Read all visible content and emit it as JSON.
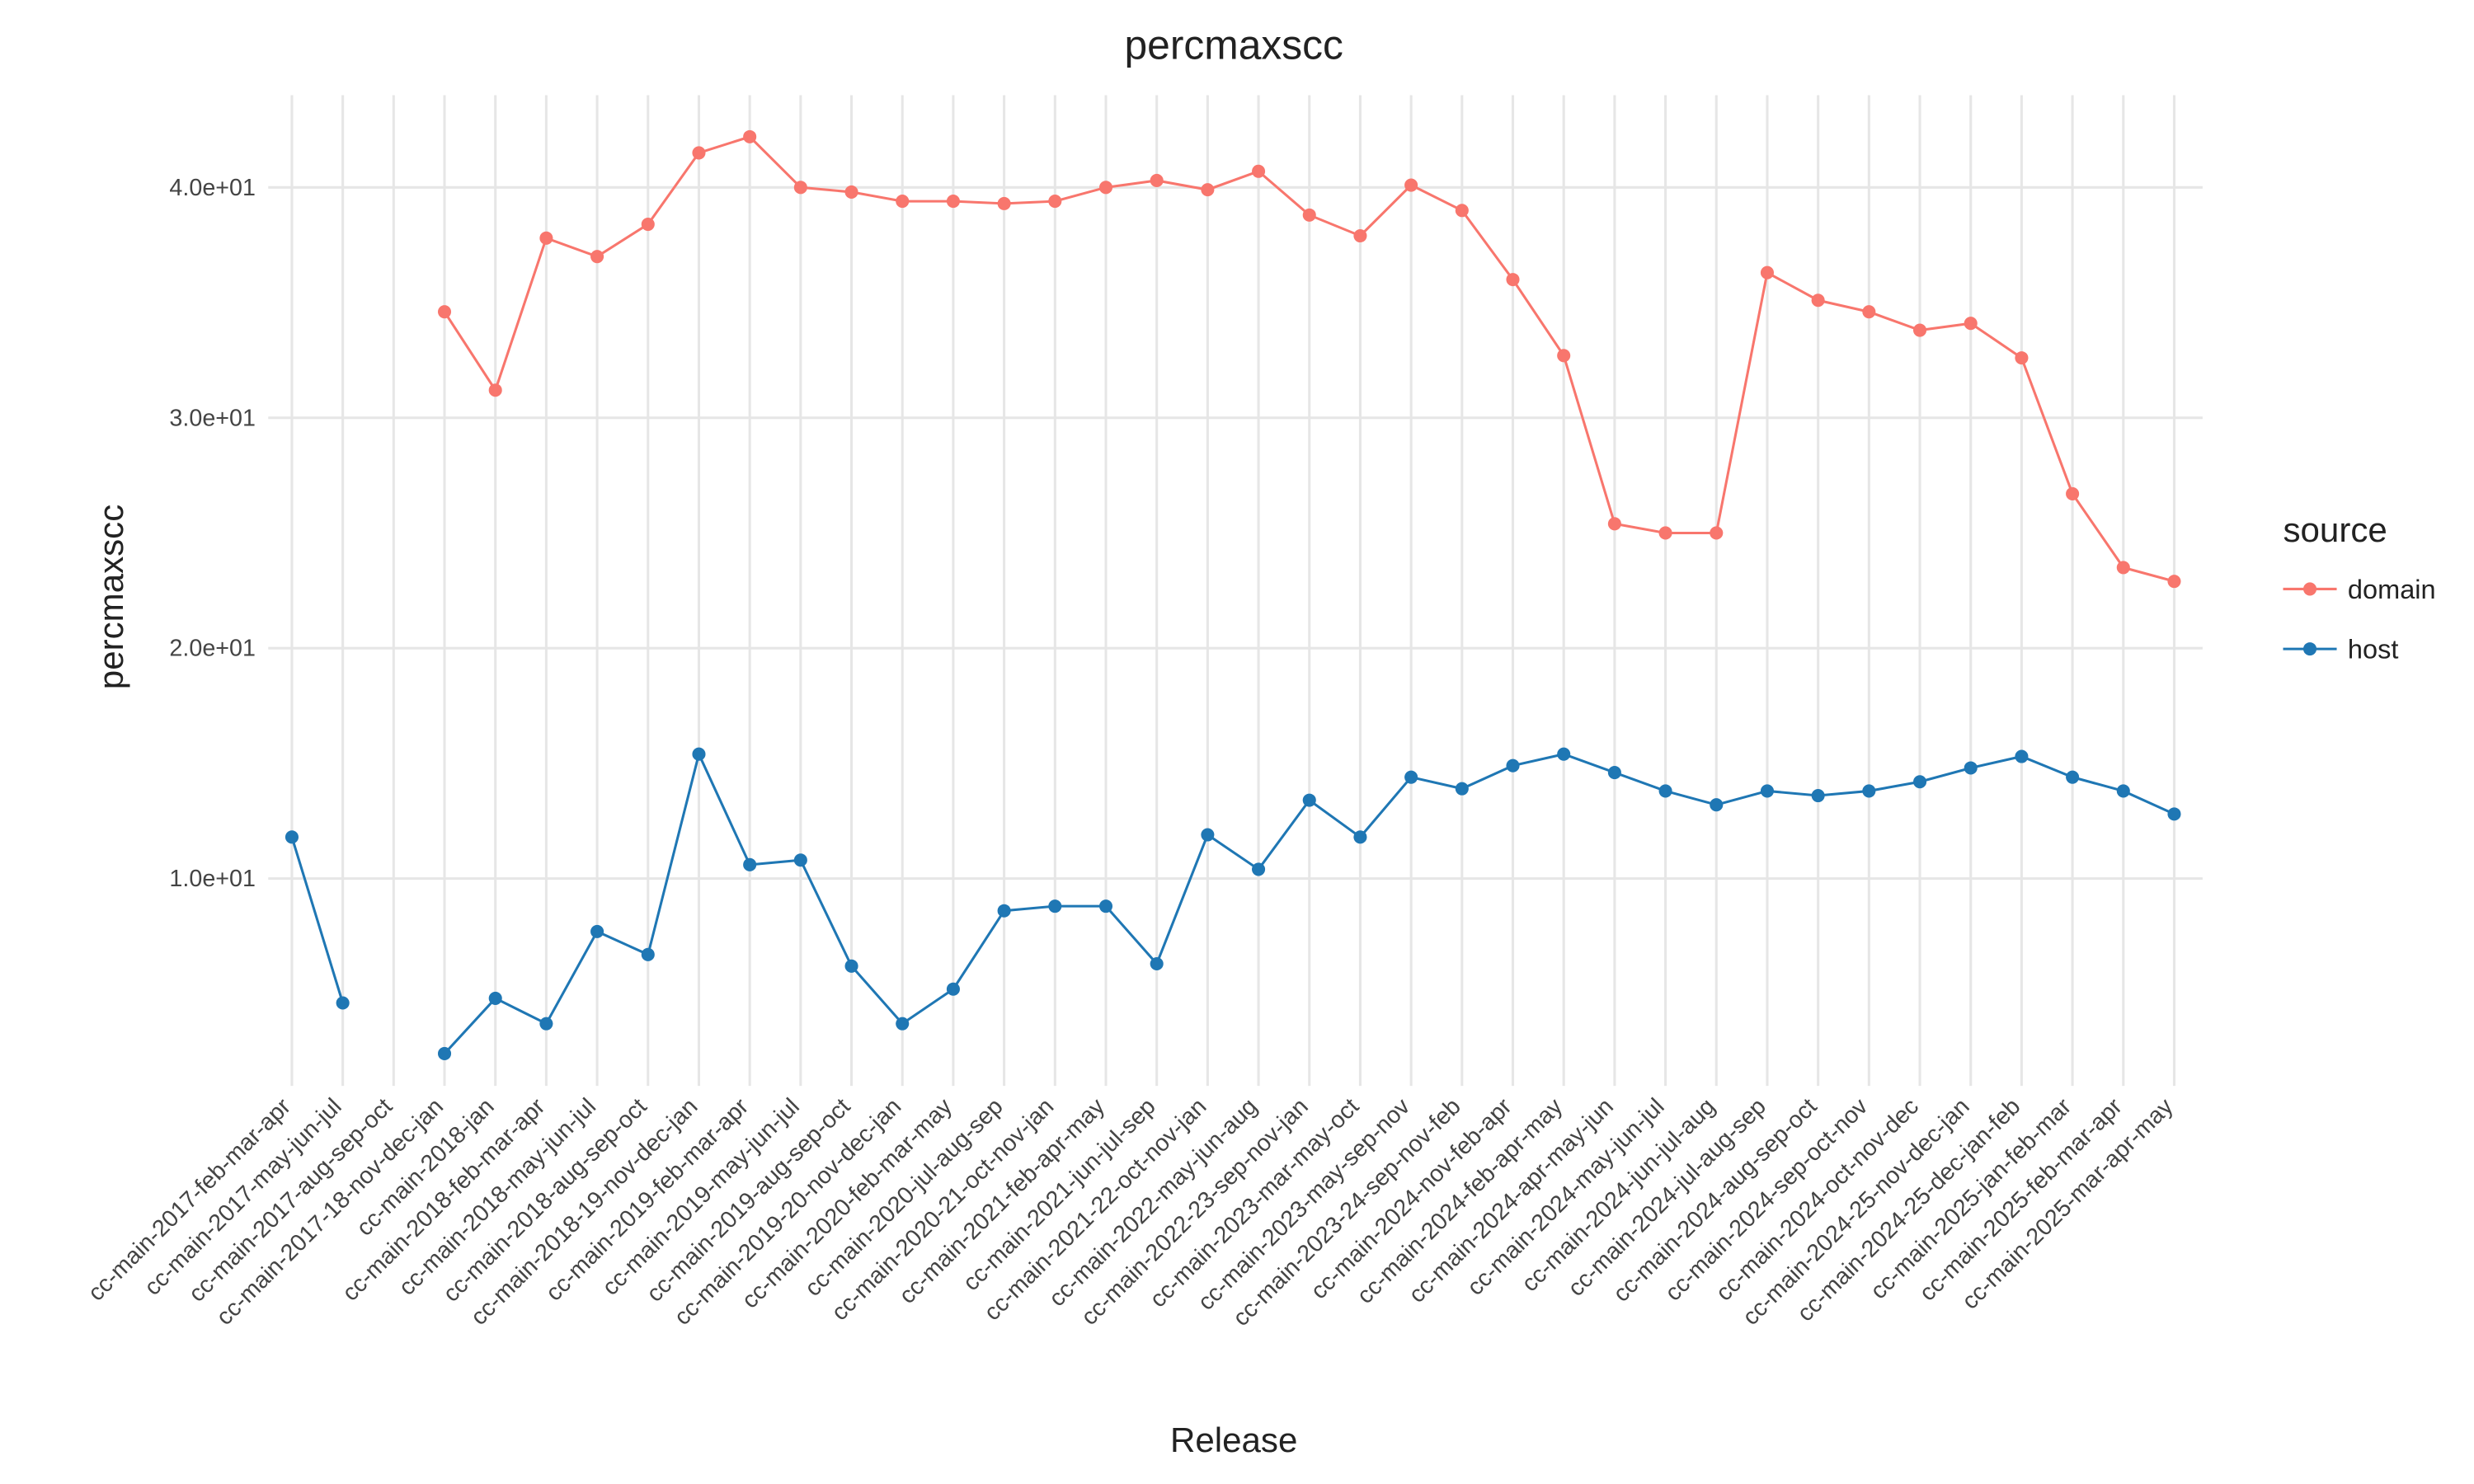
{
  "chart_data": {
    "type": "line",
    "title": "percmaxscc",
    "x_label": "Release",
    "y_label": "percmaxscc",
    "legend_title": "source",
    "legend_position": "right",
    "grid": true,
    "categories": [
      "cc-main-2017-feb-mar-apr",
      "cc-main-2017-may-jun-jul",
      "cc-main-2017-aug-sep-oct",
      "cc-main-2017-18-nov-dec-jan",
      "cc-main-2018-jan",
      "cc-main-2018-feb-mar-apr",
      "cc-main-2018-may-jun-jul",
      "cc-main-2018-aug-sep-oct",
      "cc-main-2018-19-nov-dec-jan",
      "cc-main-2019-feb-mar-apr",
      "cc-main-2019-may-jun-jul",
      "cc-main-2019-aug-sep-oct",
      "cc-main-2019-20-nov-dec-jan",
      "cc-main-2020-feb-mar-may",
      "cc-main-2020-jul-aug-sep",
      "cc-main-2020-21-oct-nov-jan",
      "cc-main-2021-feb-apr-may",
      "cc-main-2021-jun-jul-sep",
      "cc-main-2021-22-oct-nov-jan",
      "cc-main-2022-may-jun-aug",
      "cc-main-2022-23-sep-nov-jan",
      "cc-main-2023-mar-may-oct",
      "cc-main-2023-may-sep-nov",
      "cc-main-2023-24-sep-nov-feb",
      "cc-main-2024-nov-feb-apr",
      "cc-main-2024-feb-apr-may",
      "cc-main-2024-apr-may-jun",
      "cc-main-2024-may-jun-jul",
      "cc-main-2024-jun-jul-aug",
      "cc-main-2024-jul-aug-sep",
      "cc-main-2024-aug-sep-oct",
      "cc-main-2024-sep-oct-nov",
      "cc-main-2024-oct-nov-dec",
      "cc-main-2024-25-nov-dec-jan",
      "cc-main-2024-25-dec-jan-feb",
      "cc-main-2025-jan-feb-mar",
      "cc-main-2025-feb-mar-apr",
      "cc-main-2025-mar-apr-may"
    ],
    "series": [
      {
        "name": "domain",
        "color": "#f8766d",
        "values": [
          null,
          null,
          null,
          34.6,
          31.2,
          37.8,
          37.0,
          38.4,
          41.5,
          42.2,
          40.0,
          39.8,
          39.4,
          39.4,
          39.3,
          39.4,
          40.0,
          40.3,
          39.9,
          40.7,
          38.8,
          37.9,
          40.1,
          39.0,
          36.0,
          32.7,
          25.4,
          25.0,
          25.0,
          36.3,
          35.1,
          34.6,
          33.8,
          34.1,
          32.6,
          26.7,
          23.5,
          22.9
        ]
      },
      {
        "name": "host",
        "color": "#1f77b4",
        "values": [
          11.8,
          4.6,
          null,
          2.4,
          4.8,
          3.7,
          7.7,
          6.7,
          15.4,
          10.6,
          10.8,
          6.2,
          3.7,
          5.2,
          8.6,
          8.8,
          8.8,
          6.3,
          11.9,
          10.4,
          13.4,
          11.8,
          14.4,
          13.9,
          14.9,
          15.4,
          14.6,
          13.8,
          13.2,
          13.8,
          13.6,
          13.8,
          14.2,
          14.8,
          15.3,
          14.4,
          13.8,
          12.8
        ]
      }
    ],
    "ylim": [
      1,
      44
    ],
    "yticks": [
      {
        "value": 10,
        "label": "1.0e+01"
      },
      {
        "value": 20,
        "label": "2.0e+01"
      },
      {
        "value": 30,
        "label": "3.0e+01"
      },
      {
        "value": 40,
        "label": "4.0e+01"
      }
    ]
  }
}
